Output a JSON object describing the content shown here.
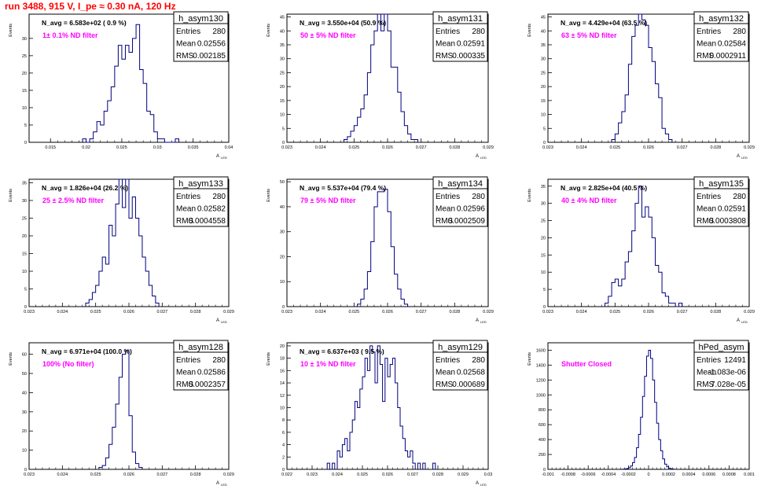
{
  "run_title": "run 3488,   915 V, I_pe ≈ 0.30 nA, 120 Hz",
  "colors": {
    "title": "#ff0000",
    "histogram": "#000080",
    "annotation": "#ff00ff",
    "axis": "#000000"
  },
  "chart_data": [
    {
      "type": "histogram",
      "name": "h_asym130",
      "stats": {
        "entries_label": "Entries",
        "entries": "280",
        "mean_label": "Mean",
        "mean": "0.02556",
        "rms_label": "RMS",
        "rms": "0.002185"
      },
      "navg": "N_avg = 6.583e+02 ( 0.9 %)",
      "filter": "1± 0.1% ND filter",
      "xlabel": "A",
      "xlabel_sub": "LED",
      "ylabel": "Events",
      "xlim": [
        0.012,
        0.04
      ],
      "ylim": [
        0,
        37
      ],
      "grid": false,
      "xticks": [
        "0.015",
        "0.02",
        "0.025",
        "0.03",
        "0.035",
        "0.04"
      ],
      "xtick_values": [
        0.015,
        0.02,
        0.025,
        0.03,
        0.035,
        0.04
      ],
      "yticks": [
        0,
        5,
        10,
        15,
        20,
        25,
        30
      ],
      "bin_width": 0.0005,
      "bins": [
        [
          0.0195,
          1
        ],
        [
          0.02,
          0
        ],
        [
          0.0205,
          1
        ],
        [
          0.021,
          3
        ],
        [
          0.0215,
          6
        ],
        [
          0.022,
          5
        ],
        [
          0.0225,
          9
        ],
        [
          0.023,
          12
        ],
        [
          0.0235,
          16
        ],
        [
          0.024,
          22
        ],
        [
          0.0245,
          28
        ],
        [
          0.025,
          24
        ],
        [
          0.0255,
          28
        ],
        [
          0.026,
          26
        ],
        [
          0.0265,
          30
        ],
        [
          0.027,
          34
        ],
        [
          0.0275,
          21
        ],
        [
          0.028,
          17
        ],
        [
          0.0285,
          9
        ],
        [
          0.029,
          8
        ],
        [
          0.0295,
          3
        ],
        [
          0.03,
          1
        ],
        [
          0.0305,
          1
        ],
        [
          0.031,
          0
        ],
        [
          0.0315,
          0
        ],
        [
          0.032,
          0
        ],
        [
          0.0325,
          1
        ]
      ]
    },
    {
      "type": "histogram",
      "name": "h_asym131",
      "stats": {
        "entries_label": "Entries",
        "entries": "280",
        "mean_label": "Mean",
        "mean": "0.02591",
        "rms_label": "RMS",
        "rms": "0.000335"
      },
      "navg": "N_avg = 3.550e+04 (50.9 %)",
      "filter": "50 ± 5% ND filter",
      "xlabel": "A",
      "xlabel_sub": "LED",
      "ylabel": "Events",
      "xlim": [
        0.023,
        0.029
      ],
      "ylim": [
        0,
        46
      ],
      "grid": false,
      "xticks": [
        "0.023",
        "0.024",
        "0.025",
        "0.026",
        "0.027",
        "0.028",
        "0.029"
      ],
      "xtick_values": [
        0.023,
        0.024,
        0.025,
        0.026,
        0.027,
        0.028,
        0.029
      ],
      "yticks": [
        0,
        5,
        10,
        15,
        20,
        25,
        30,
        35,
        40,
        45
      ],
      "bin_width": 0.0001,
      "bins": [
        [
          0.0247,
          1
        ],
        [
          0.0248,
          2
        ],
        [
          0.0249,
          4
        ],
        [
          0.025,
          6
        ],
        [
          0.0251,
          9
        ],
        [
          0.0252,
          12
        ],
        [
          0.0253,
          17
        ],
        [
          0.0254,
          25
        ],
        [
          0.0255,
          35
        ],
        [
          0.0256,
          40
        ],
        [
          0.0257,
          46
        ],
        [
          0.0258,
          40
        ],
        [
          0.0259,
          46
        ],
        [
          0.026,
          40
        ],
        [
          0.0261,
          27
        ],
        [
          0.0262,
          27
        ],
        [
          0.0263,
          18
        ],
        [
          0.0264,
          11
        ],
        [
          0.0265,
          6
        ],
        [
          0.0266,
          3
        ],
        [
          0.0267,
          1
        ],
        [
          0.0268,
          1
        ]
      ]
    },
    {
      "type": "histogram",
      "name": "h_asym132",
      "stats": {
        "entries_label": "Entries",
        "entries": "280",
        "mean_label": "Mean",
        "mean": "0.02584",
        "rms_label": "RMS",
        "rms": "0.0002911"
      },
      "navg": "N_avg = 4.429e+04 (63.5 %)",
      "filter": "63 ± 5% ND filter",
      "xlabel": "A",
      "xlabel_sub": "LED",
      "ylabel": "Events",
      "xlim": [
        0.023,
        0.029
      ],
      "ylim": [
        0,
        46
      ],
      "grid": false,
      "xticks": [
        "0.023",
        "0.024",
        "0.025",
        "0.026",
        "0.027",
        "0.028",
        "0.029"
      ],
      "xtick_values": [
        0.023,
        0.024,
        0.025,
        0.026,
        0.027,
        0.028,
        0.029
      ],
      "yticks": [
        0,
        5,
        10,
        15,
        20,
        25,
        30,
        35,
        40,
        45
      ],
      "bin_width": 0.0001,
      "bins": [
        [
          0.0249,
          1
        ],
        [
          0.025,
          3
        ],
        [
          0.0251,
          7
        ],
        [
          0.0252,
          11
        ],
        [
          0.0253,
          17
        ],
        [
          0.0254,
          28
        ],
        [
          0.0255,
          38
        ],
        [
          0.0256,
          42
        ],
        [
          0.0257,
          46
        ],
        [
          0.0258,
          44
        ],
        [
          0.0259,
          42
        ],
        [
          0.026,
          34
        ],
        [
          0.0261,
          29
        ],
        [
          0.0262,
          21
        ],
        [
          0.0263,
          16
        ],
        [
          0.0264,
          5
        ],
        [
          0.0265,
          3
        ],
        [
          0.0266,
          1
        ]
      ]
    },
    {
      "type": "histogram",
      "name": "h_asym133",
      "stats": {
        "entries_label": "Entries",
        "entries": "280",
        "mean_label": "Mean",
        "mean": "0.02582",
        "rms_label": "RMS",
        "rms": "0.0004558"
      },
      "navg": "N_avg = 1.826e+04 (26.2 %)",
      "filter": "25 ± 2.5% ND filter",
      "xlabel": "A",
      "xlabel_sub": "LED",
      "ylabel": "Events",
      "xlim": [
        0.023,
        0.029
      ],
      "ylim": [
        0,
        36
      ],
      "grid": false,
      "xticks": [
        "0.023",
        "0.024",
        "0.025",
        "0.026",
        "0.027",
        "0.028",
        "0.029"
      ],
      "xtick_values": [
        0.023,
        0.024,
        0.025,
        0.026,
        0.027,
        0.028,
        0.029
      ],
      "yticks": [
        0,
        5,
        10,
        15,
        20,
        25,
        30,
        35
      ],
      "bin_width": 0.0001,
      "bins": [
        [
          0.0247,
          1
        ],
        [
          0.0248,
          2
        ],
        [
          0.0249,
          4
        ],
        [
          0.025,
          6
        ],
        [
          0.0251,
          10
        ],
        [
          0.0252,
          14
        ],
        [
          0.0253,
          12
        ],
        [
          0.0254,
          23
        ],
        [
          0.0255,
          20
        ],
        [
          0.0256,
          29
        ],
        [
          0.0257,
          36
        ],
        [
          0.0258,
          28
        ],
        [
          0.0259,
          36
        ],
        [
          0.026,
          25
        ],
        [
          0.0261,
          31
        ],
        [
          0.0262,
          25
        ],
        [
          0.0263,
          20
        ],
        [
          0.0264,
          14
        ],
        [
          0.0265,
          10
        ],
        [
          0.0266,
          6
        ],
        [
          0.0267,
          3
        ],
        [
          0.0268,
          1
        ]
      ]
    },
    {
      "type": "histogram",
      "name": "h_asym134",
      "stats": {
        "entries_label": "Entries",
        "entries": "280",
        "mean_label": "Mean",
        "mean": "0.02596",
        "rms_label": "RMS",
        "rms": "0.0002509"
      },
      "navg": "N_avg = 5.537e+04 (79.4 %)",
      "filter": "79 ± 5% ND filter",
      "xlabel": "A",
      "xlabel_sub": "LED",
      "ylabel": "Events",
      "xlim": [
        0.023,
        0.029
      ],
      "ylim": [
        0,
        51
      ],
      "grid": false,
      "xticks": [
        "0.023",
        "0.024",
        "0.025",
        "0.026",
        "0.027",
        "0.028",
        "0.029"
      ],
      "xtick_values": [
        0.023,
        0.024,
        0.025,
        0.026,
        0.027,
        0.028,
        0.029
      ],
      "yticks": [
        0,
        10,
        20,
        30,
        40,
        50
      ],
      "bin_width": 0.0001,
      "bins": [
        [
          0.0251,
          1
        ],
        [
          0.0252,
          3
        ],
        [
          0.0253,
          7
        ],
        [
          0.0254,
          14
        ],
        [
          0.0255,
          26
        ],
        [
          0.0256,
          40
        ],
        [
          0.0257,
          46
        ],
        [
          0.0258,
          46
        ],
        [
          0.0259,
          47
        ],
        [
          0.026,
          38
        ],
        [
          0.0261,
          24
        ],
        [
          0.0262,
          13
        ],
        [
          0.0263,
          7
        ],
        [
          0.0264,
          3
        ],
        [
          0.0265,
          1
        ]
      ]
    },
    {
      "type": "histogram",
      "name": "h_asym135",
      "stats": {
        "entries_label": "Entries",
        "entries": "280",
        "mean_label": "Mean",
        "mean": "0.02591",
        "rms_label": "RMS",
        "rms": "0.0003808"
      },
      "navg": "N_avg = 2.825e+04 (40.5 %)",
      "filter": "40 ± 4% ND filter",
      "xlabel": "A",
      "xlabel_sub": "LED",
      "ylabel": "Events",
      "xlim": [
        0.023,
        0.029
      ],
      "ylim": [
        0,
        37
      ],
      "grid": false,
      "xticks": [
        "0.023",
        "0.024",
        "0.025",
        "0.026",
        "0.027",
        "0.028",
        "0.029"
      ],
      "xtick_values": [
        0.023,
        0.024,
        0.025,
        0.026,
        0.027,
        0.028,
        0.029
      ],
      "yticks": [
        0,
        5,
        10,
        15,
        20,
        25,
        30,
        35
      ],
      "bin_width": 0.0001,
      "bins": [
        [
          0.0247,
          1
        ],
        [
          0.0248,
          3
        ],
        [
          0.0249,
          7
        ],
        [
          0.025,
          8
        ],
        [
          0.0251,
          6
        ],
        [
          0.0252,
          8
        ],
        [
          0.0253,
          13
        ],
        [
          0.0254,
          16
        ],
        [
          0.0255,
          22
        ],
        [
          0.0256,
          30
        ],
        [
          0.0257,
          35
        ],
        [
          0.0258,
          26
        ],
        [
          0.0259,
          29
        ],
        [
          0.026,
          26
        ],
        [
          0.0261,
          20
        ],
        [
          0.0262,
          12
        ],
        [
          0.0263,
          10
        ],
        [
          0.0264,
          4
        ],
        [
          0.0265,
          3
        ],
        [
          0.0266,
          1
        ],
        [
          0.0267,
          1
        ],
        [
          0.0268,
          0
        ],
        [
          0.0269,
          1
        ]
      ]
    },
    {
      "type": "histogram",
      "name": "h_asym128",
      "stats": {
        "entries_label": "Entries",
        "entries": "280",
        "mean_label": "Mean",
        "mean": "0.02586",
        "rms_label": "RMS",
        "rms": "0.0002357"
      },
      "navg": "N_avg = 6.971e+04 (100.0 %)",
      "filter": "100% (No filter)",
      "xlabel": "A",
      "xlabel_sub": "LED",
      "ylabel": "Events",
      "xlim": [
        0.023,
        0.029
      ],
      "ylim": [
        0,
        66
      ],
      "grid": false,
      "xticks": [
        "0.023",
        "0.024",
        "0.025",
        "0.026",
        "0.027",
        "0.028",
        "0.029"
      ],
      "xtick_values": [
        0.023,
        0.024,
        0.025,
        0.026,
        0.027,
        0.028,
        0.029
      ],
      "yticks": [
        0,
        10,
        20,
        30,
        40,
        50,
        60
      ],
      "bin_width": 0.0001,
      "bins": [
        [
          0.0251,
          1
        ],
        [
          0.0252,
          2
        ],
        [
          0.0253,
          6
        ],
        [
          0.0254,
          13
        ],
        [
          0.0255,
          22
        ],
        [
          0.0256,
          34
        ],
        [
          0.0257,
          48
        ],
        [
          0.0258,
          60
        ],
        [
          0.0259,
          62
        ],
        [
          0.026,
          28
        ],
        [
          0.0261,
          9
        ],
        [
          0.0262,
          3
        ],
        [
          0.0263,
          1
        ]
      ]
    },
    {
      "type": "histogram",
      "name": "h_asym129",
      "stats": {
        "entries_label": "Entries",
        "entries": "280",
        "mean_label": "Mean",
        "mean": "0.02568",
        "rms_label": "RMS",
        "rms": "0.000689"
      },
      "navg": "N_avg = 6.637e+03 ( 9.5 %)",
      "filter": "10 ± 1% ND filter",
      "xlabel": "A",
      "xlabel_sub": "LED",
      "ylabel": "Events",
      "xlim": [
        0.022,
        0.03
      ],
      "ylim": [
        0,
        20.5
      ],
      "grid": false,
      "xticks": [
        "0.022",
        "0.023",
        "0.024",
        "0.025",
        "0.026",
        "0.027",
        "0.028",
        "0.029",
        "0.03"
      ],
      "xtick_values": [
        0.022,
        0.023,
        0.024,
        0.025,
        0.026,
        0.027,
        0.028,
        0.029,
        0.03
      ],
      "yticks": [
        0,
        2,
        4,
        6,
        8,
        10,
        12,
        14,
        16,
        18,
        20
      ],
      "bin_width": 0.0001,
      "bins": [
        [
          0.0236,
          1
        ],
        [
          0.0238,
          1
        ],
        [
          0.024,
          3
        ],
        [
          0.0241,
          2
        ],
        [
          0.0242,
          4
        ],
        [
          0.0243,
          5
        ],
        [
          0.0244,
          3
        ],
        [
          0.0245,
          6
        ],
        [
          0.0246,
          8
        ],
        [
          0.0247,
          11
        ],
        [
          0.0248,
          10
        ],
        [
          0.0249,
          13
        ],
        [
          0.025,
          15
        ],
        [
          0.0251,
          18
        ],
        [
          0.0252,
          16
        ],
        [
          0.0253,
          20
        ],
        [
          0.0254,
          19
        ],
        [
          0.0255,
          14
        ],
        [
          0.0256,
          20
        ],
        [
          0.0257,
          17
        ],
        [
          0.0258,
          11
        ],
        [
          0.0259,
          18
        ],
        [
          0.026,
          15
        ],
        [
          0.0261,
          17
        ],
        [
          0.0262,
          18
        ],
        [
          0.0263,
          14
        ],
        [
          0.0264,
          10
        ],
        [
          0.0265,
          7
        ],
        [
          0.0266,
          5
        ],
        [
          0.0267,
          3
        ],
        [
          0.0268,
          2
        ],
        [
          0.0269,
          3
        ],
        [
          0.027,
          1
        ],
        [
          0.0272,
          1
        ],
        [
          0.0274,
          1
        ],
        [
          0.0278,
          1
        ]
      ]
    },
    {
      "type": "histogram",
      "name": "hPed_asym",
      "stats": {
        "entries_label": "Entries",
        "entries": "12491",
        "mean_label": "Mean",
        "mean": "-1.083e-06",
        "rms_label": "RMS",
        "rms": "7.028e-05"
      },
      "navg": "",
      "filter": "Shutter Closed",
      "xlabel": "",
      "xlabel_sub": "",
      "ylabel": "Events",
      "xlim": [
        -0.001,
        0.001
      ],
      "ylim": [
        0,
        1700
      ],
      "grid": false,
      "xticks": [
        "-0.001",
        "-0.0008",
        "-0.0006",
        "-0.0004",
        "-0.0002",
        "0",
        "0.0002",
        "0.0004",
        "0.0006",
        "0.0008",
        "0.001"
      ],
      "xtick_values": [
        -0.001,
        -0.0008,
        -0.0006,
        -0.0004,
        -0.0002,
        0,
        0.0002,
        0.0004,
        0.0006,
        0.0008,
        0.001
      ],
      "yticks": [
        0,
        200,
        400,
        600,
        800,
        1000,
        1200,
        1400,
        1600
      ],
      "bin_width": 2e-05,
      "bins": [
        [
          -0.00026,
          2
        ],
        [
          -0.00024,
          5
        ],
        [
          -0.00022,
          10
        ],
        [
          -0.0002,
          22
        ],
        [
          -0.00018,
          45
        ],
        [
          -0.00016,
          90
        ],
        [
          -0.00014,
          160
        ],
        [
          -0.00012,
          290
        ],
        [
          -0.0001,
          470
        ],
        [
          -8e-05,
          700
        ],
        [
          -6e-05,
          980
        ],
        [
          -4e-05,
          1250
        ],
        [
          -2e-05,
          1520
        ],
        [
          0,
          1600
        ],
        [
          2e-05,
          1490
        ],
        [
          4e-05,
          1200
        ],
        [
          6e-05,
          900
        ],
        [
          8e-05,
          620
        ],
        [
          0.0001,
          400
        ],
        [
          0.00012,
          250
        ],
        [
          0.00014,
          140
        ],
        [
          0.00016,
          70
        ],
        [
          0.00018,
          35
        ],
        [
          0.0002,
          15
        ],
        [
          0.00022,
          6
        ],
        [
          0.00024,
          2
        ]
      ]
    }
  ]
}
